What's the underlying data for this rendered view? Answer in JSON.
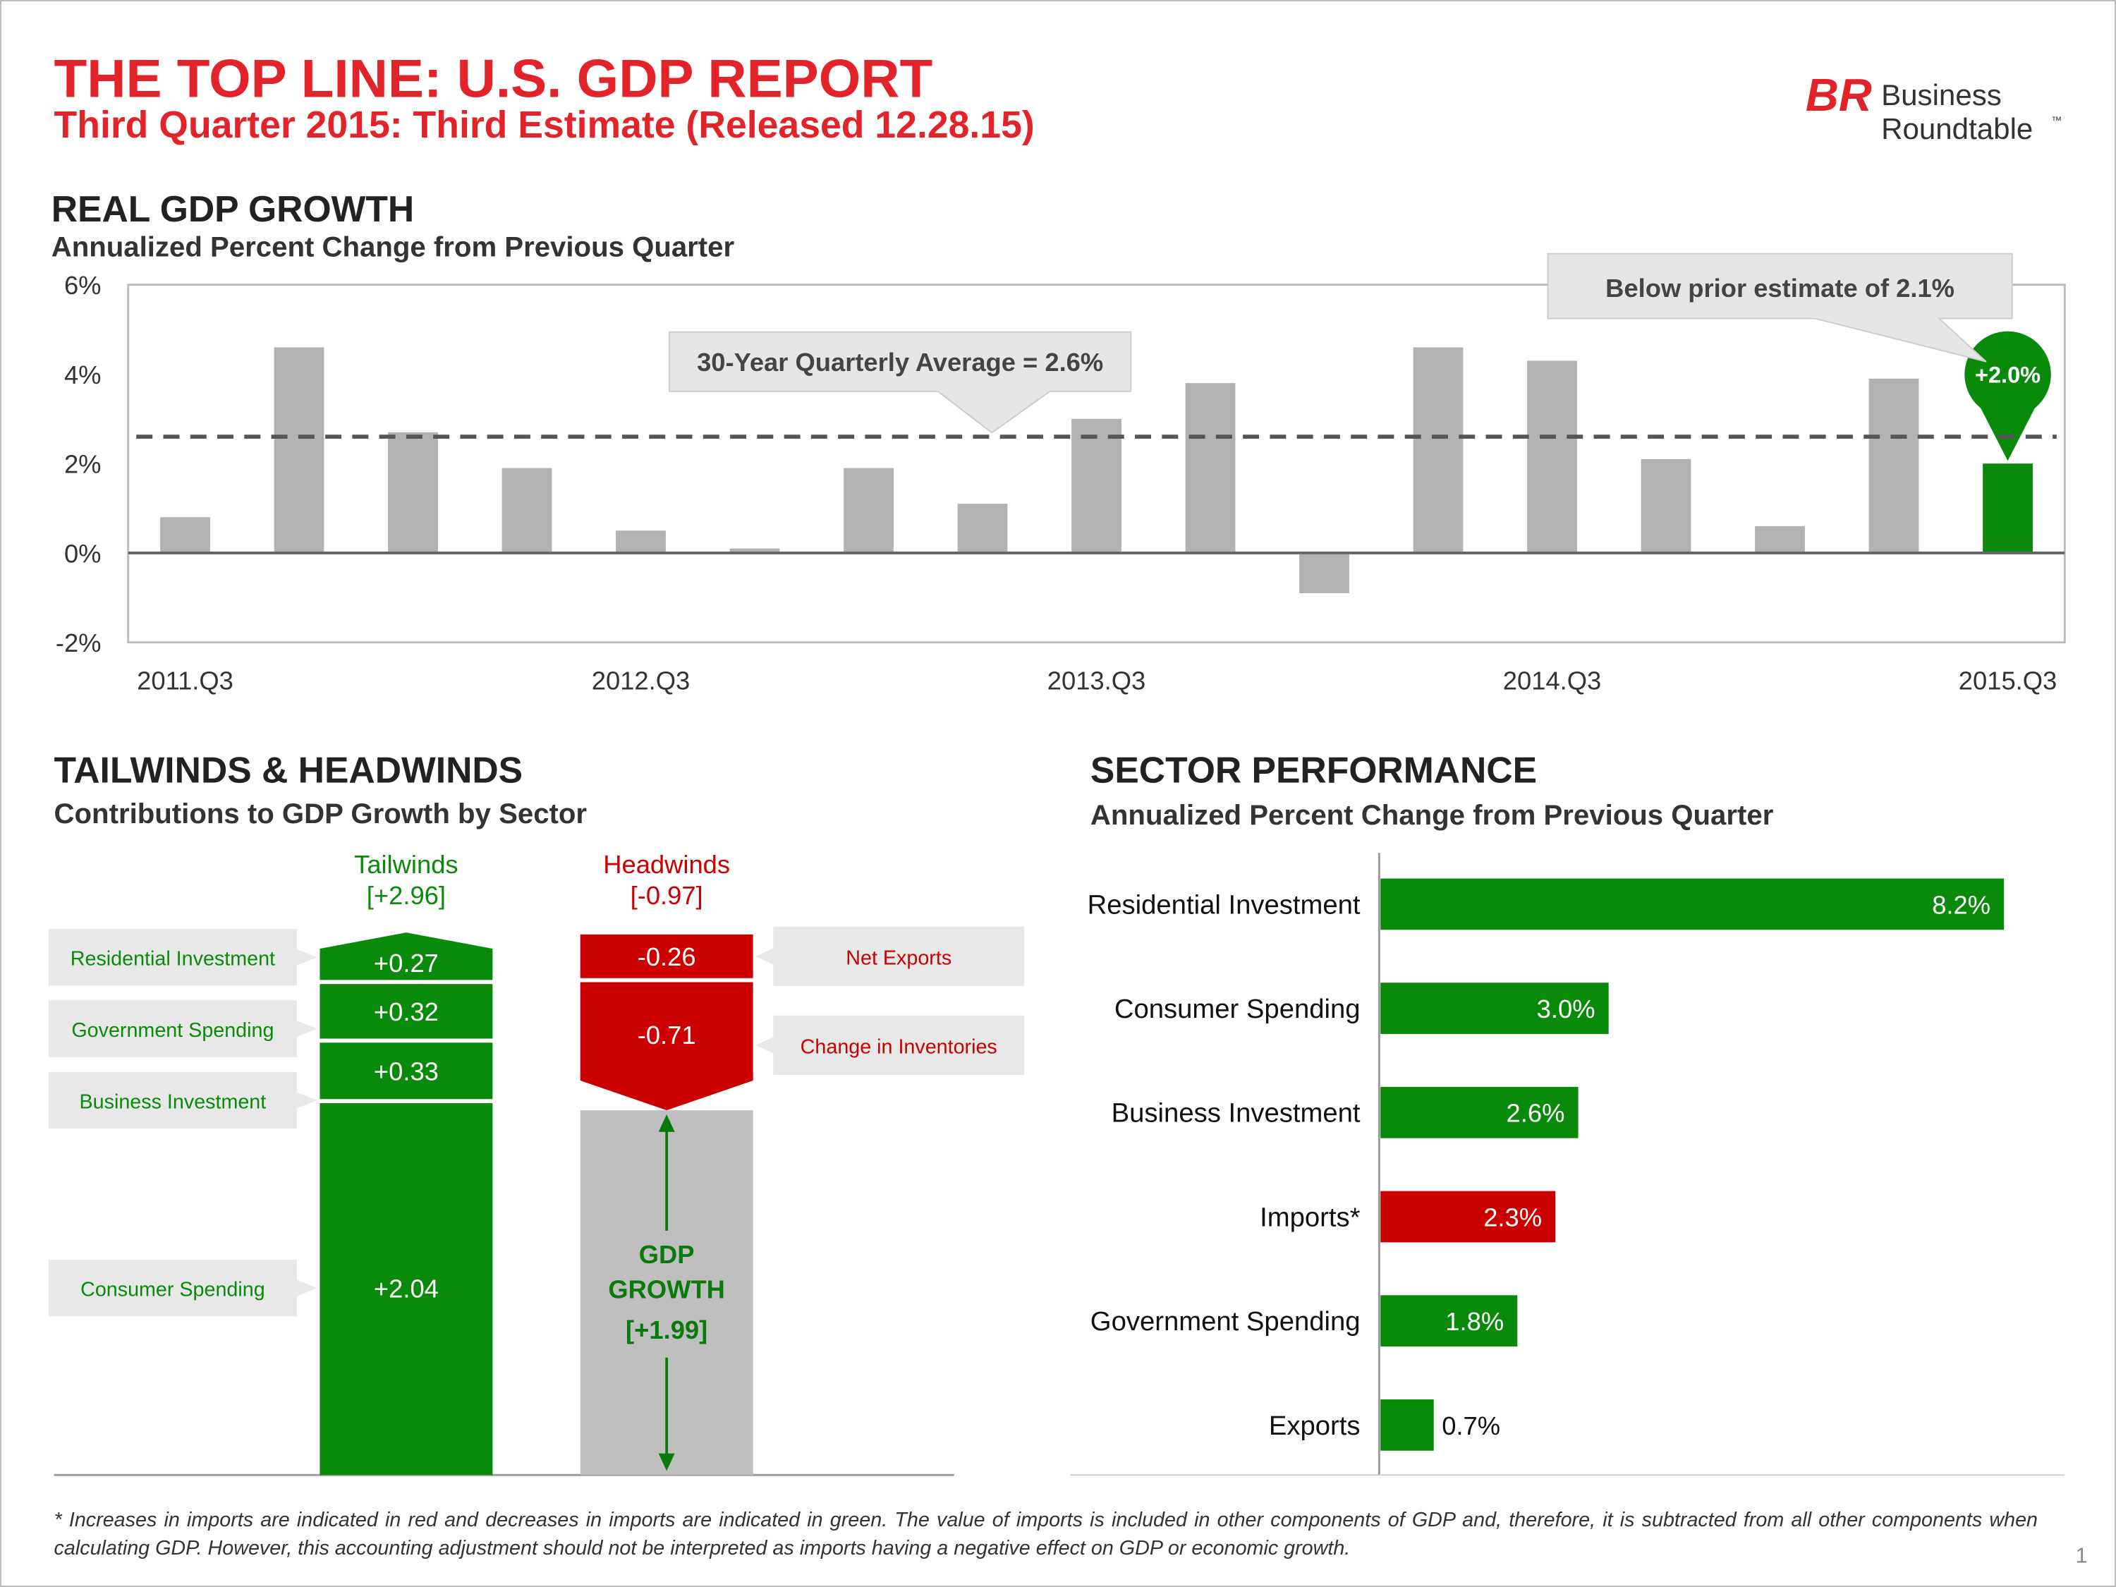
{
  "header": {
    "title": "THE TOP LINE: U.S. GDP REPORT",
    "subtitle": "Third Quarter 2015: Third Estimate (Released 12.28.15)"
  },
  "logo": {
    "mark": "BR",
    "line1": "Business",
    "line2": "Roundtable",
    "trademark": "™"
  },
  "chart_data": [
    {
      "type": "bar",
      "title": "REAL GDP GROWTH",
      "subtitle": "Annualized Percent Change from Previous Quarter",
      "categories": [
        "2011.Q3",
        null,
        null,
        null,
        "2012.Q3",
        null,
        null,
        null,
        "2013.Q3",
        null,
        null,
        null,
        "2014.Q3",
        null,
        null,
        null,
        "2015.Q3"
      ],
      "values": [
        0.8,
        4.6,
        2.7,
        1.9,
        0.5,
        0.1,
        1.9,
        1.1,
        3.0,
        3.8,
        -0.9,
        4.6,
        4.3,
        2.1,
        0.6,
        3.9,
        2.0
      ],
      "value_labels": [
        null,
        null,
        null,
        null,
        null,
        null,
        null,
        null,
        null,
        null,
        null,
        null,
        null,
        null,
        null,
        null,
        "+2.0%"
      ],
      "colors": [
        "#b2b2b2",
        "#b2b2b2",
        "#b2b2b2",
        "#b2b2b2",
        "#b2b2b2",
        "#b2b2b2",
        "#b2b2b2",
        "#b2b2b2",
        "#b2b2b2",
        "#b2b2b2",
        "#b2b2b2",
        "#b2b2b2",
        "#b2b2b2",
        "#b2b2b2",
        "#b2b2b2",
        "#b2b2b2",
        "#0a8a0a"
      ],
      "ylim": [
        -2,
        6
      ],
      "yticks": [
        {
          "value": -2,
          "label": "-2%"
        },
        {
          "value": 0,
          "label": "0%"
        },
        {
          "value": 2,
          "label": "2%"
        },
        {
          "value": 4,
          "label": "4%"
        },
        {
          "value": 6,
          "label": "6%"
        }
      ],
      "grid": false,
      "reference_line": {
        "value": 2.6,
        "label": "30-Year Quarterly Average = 2.6%"
      },
      "annotations": [
        {
          "text": "Below prior estimate of 2.1%"
        }
      ]
    },
    {
      "type": "waterfall",
      "title": "TAILWINDS & HEADWINDS",
      "subtitle": "Contributions to GDP Growth by Sector",
      "series": [
        {
          "name": "Tailwinds",
          "total": 2.96,
          "total_label": "[+2.96]",
          "color": "#0a8a0a",
          "categories": [
            "Residential Investment",
            "Government Spending",
            "Business Investment",
            "Consumer Spending"
          ],
          "values": [
            0.27,
            0.32,
            0.33,
            2.04
          ],
          "value_labels": [
            "+0.27",
            "+0.32",
            "+0.33",
            "+2.04"
          ]
        },
        {
          "name": "Headwinds",
          "total": -0.97,
          "total_label": "[-0.97]",
          "color": "#cc0000",
          "categories": [
            "Net Exports",
            "Change in Inventories"
          ],
          "values": [
            -0.26,
            -0.71
          ],
          "value_labels": [
            "-0.26",
            "-0.71"
          ]
        }
      ],
      "result": {
        "name": "GDP GROWTH",
        "value": 1.99,
        "value_label": "[+1.99]",
        "color": "#bfbfbf"
      }
    },
    {
      "type": "hbar",
      "title": "SECTOR PERFORMANCE",
      "subtitle": "Annualized Percent Change from Previous Quarter",
      "categories": [
        "Residential Investment",
        "Consumer Spending",
        "Business Investment",
        "Imports*",
        "Government Spending",
        "Exports"
      ],
      "values": [
        8.2,
        3.0,
        2.6,
        2.3,
        1.8,
        0.7
      ],
      "value_labels": [
        "8.2%",
        "3.0%",
        "2.6%",
        "2.3%",
        "1.8%",
        "0.7%"
      ],
      "colors": [
        "#0a8a0a",
        "#0a8a0a",
        "#0a8a0a",
        "#cc0000",
        "#0a8a0a",
        "#0a8a0a"
      ]
    }
  ],
  "footnote": "* Increases in imports are indicated in red and decreases in imports are indicated in green. The value of imports is included in other components of GDP and, therefore, it is subtracted from all other components when calculating GDP. However, this accounting adjustment should not be interpreted as imports having a negative effect on GDP or economic growth.",
  "page_number": 1
}
